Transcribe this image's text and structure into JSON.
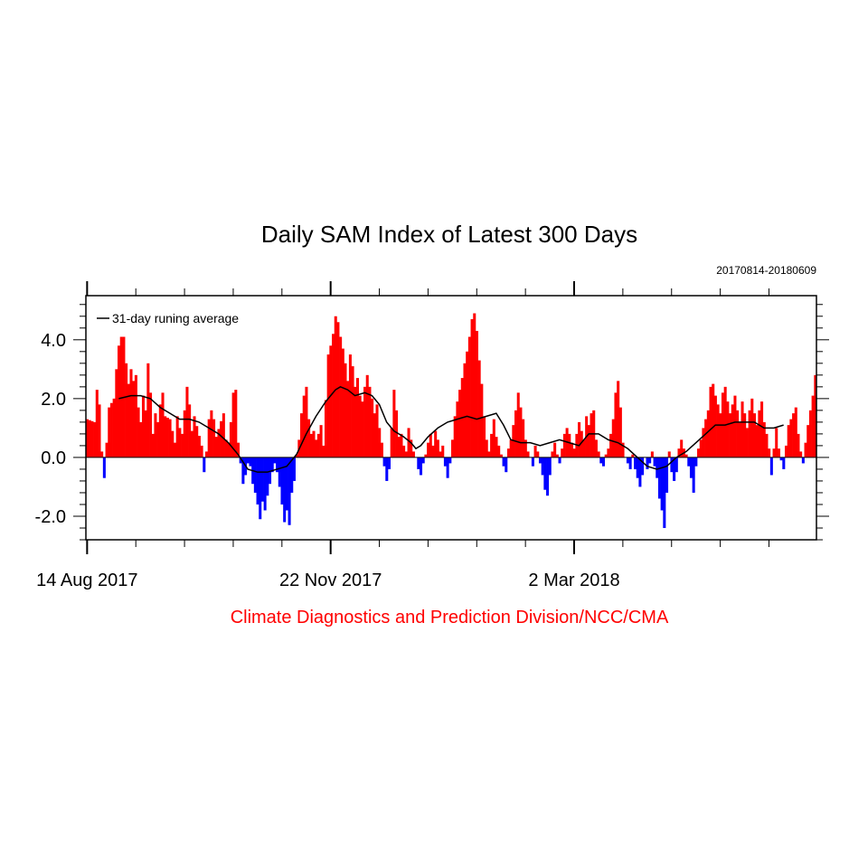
{
  "chart_data": {
    "type": "bar",
    "title": "Daily SAM Index of Latest 300 Days",
    "subtitle": "20170814-20180609",
    "credit": "Climate Diagnostics and Prediction Division/NCC/CMA",
    "legend": {
      "label": "31-day runing average",
      "placement": "top-left"
    },
    "ylim": [
      -2.8,
      5.5
    ],
    "yticks": [
      {
        "value": 4.0,
        "label": "4.0"
      },
      {
        "value": 2.0,
        "label": "2.0"
      },
      {
        "value": 0.0,
        "label": "0.0"
      },
      {
        "value": -2.0,
        "label": "-2.0"
      }
    ],
    "xlim": [
      0,
      299
    ],
    "xticks": [
      {
        "day": 0,
        "label": "14 Aug 2017"
      },
      {
        "day": 100,
        "label": "22 Nov 2017"
      },
      {
        "day": 200,
        "label": "2 Mar 2018"
      }
    ],
    "colors": {
      "positive": "#ff0000",
      "negative": "#0000ff",
      "average": "#000000",
      "credit": "#ff0000"
    },
    "anchors": [
      [
        0,
        1.3
      ],
      [
        3,
        1.2
      ],
      [
        4,
        2.3
      ],
      [
        5,
        1.8
      ],
      [
        6,
        0.2
      ],
      [
        7,
        -0.7
      ],
      [
        8,
        0.5
      ],
      [
        9,
        1.7
      ],
      [
        11,
        2.0
      ],
      [
        12,
        3.0
      ],
      [
        13,
        3.8
      ],
      [
        14,
        4.1
      ],
      [
        15,
        4.1
      ],
      [
        16,
        3.2
      ],
      [
        17,
        2.5
      ],
      [
        18,
        3.0
      ],
      [
        19,
        2.6
      ],
      [
        20,
        2.8
      ],
      [
        21,
        1.7
      ],
      [
        22,
        1.2
      ],
      [
        23,
        2.1
      ],
      [
        24,
        1.6
      ],
      [
        25,
        3.2
      ],
      [
        26,
        2.2
      ],
      [
        27,
        0.8
      ],
      [
        28,
        1.5
      ],
      [
        29,
        1.2
      ],
      [
        30,
        1.8
      ],
      [
        31,
        2.2
      ],
      [
        32,
        1.4
      ],
      [
        34,
        1.3
      ],
      [
        35,
        0.9
      ],
      [
        36,
        0.5
      ],
      [
        37,
        1.4
      ],
      [
        38,
        1.0
      ],
      [
        39,
        0.8
      ],
      [
        40,
        1.6
      ],
      [
        41,
        2.4
      ],
      [
        42,
        1.8
      ],
      [
        43,
        0.9
      ],
      [
        44,
        1.4
      ],
      [
        47,
        0.4
      ],
      [
        48,
        -0.5
      ],
      [
        49,
        0.2
      ],
      [
        50,
        1.3
      ],
      [
        51,
        1.6
      ],
      [
        52,
        1.3
      ],
      [
        53,
        0.7
      ],
      [
        56,
        1.5
      ],
      [
        57,
        0.6
      ],
      [
        58,
        0.5
      ],
      [
        59,
        1.2
      ],
      [
        60,
        2.2
      ],
      [
        61,
        2.3
      ],
      [
        62,
        0.5
      ],
      [
        63,
        -0.2
      ],
      [
        64,
        -0.9
      ],
      [
        65,
        -0.6
      ],
      [
        66,
        -0.2
      ],
      [
        67,
        -0.3
      ],
      [
        68,
        -0.9
      ],
      [
        69,
        -1.2
      ],
      [
        70,
        -1.6
      ],
      [
        71,
        -2.1
      ],
      [
        72,
        -1.5
      ],
      [
        73,
        -1.8
      ],
      [
        74,
        -1.3
      ],
      [
        75,
        -0.9
      ],
      [
        76,
        -0.5
      ],
      [
        77,
        -0.2
      ],
      [
        78,
        -0.5
      ],
      [
        79,
        -1.0
      ],
      [
        80,
        -1.6
      ],
      [
        81,
        -2.2
      ],
      [
        82,
        -1.8
      ],
      [
        83,
        -2.3
      ],
      [
        84,
        -1.2
      ],
      [
        85,
        -0.8
      ],
      [
        86,
        0.1
      ],
      [
        87,
        0.6
      ],
      [
        88,
        1.5
      ],
      [
        89,
        2.1
      ],
      [
        90,
        2.4
      ],
      [
        91,
        1.3
      ],
      [
        92,
        0.8
      ],
      [
        93,
        0.9
      ],
      [
        94,
        0.6
      ],
      [
        95,
        0.8
      ],
      [
        96,
        1.1
      ],
      [
        97,
        0.4
      ],
      [
        99,
        3.5
      ],
      [
        100,
        3.8
      ],
      [
        101,
        4.2
      ],
      [
        102,
        4.8
      ],
      [
        103,
        4.6
      ],
      [
        104,
        4.1
      ],
      [
        105,
        3.7
      ],
      [
        106,
        3.2
      ],
      [
        107,
        2.6
      ],
      [
        108,
        3.5
      ],
      [
        109,
        3.1
      ],
      [
        110,
        2.4
      ],
      [
        111,
        2.7
      ],
      [
        112,
        2.1
      ],
      [
        113,
        1.9
      ],
      [
        114,
        2.4
      ],
      [
        115,
        2.8
      ],
      [
        116,
        2.4
      ],
      [
        117,
        2.0
      ],
      [
        118,
        1.5
      ],
      [
        119,
        1.8
      ],
      [
        120,
        1.0
      ],
      [
        121,
        0.5
      ],
      [
        122,
        -0.3
      ],
      [
        123,
        -0.8
      ],
      [
        124,
        -0.4
      ],
      [
        125,
        1.0
      ],
      [
        126,
        2.3
      ],
      [
        127,
        1.6
      ],
      [
        128,
        0.7
      ],
      [
        129,
        0.8
      ],
      [
        130,
        0.4
      ],
      [
        131,
        0.2
      ],
      [
        132,
        1.0
      ],
      [
        133,
        0.6
      ],
      [
        134,
        0.2
      ],
      [
        135,
        0.0
      ],
      [
        136,
        -0.4
      ],
      [
        137,
        -0.6
      ],
      [
        138,
        -0.2
      ],
      [
        139,
        0.1
      ],
      [
        140,
        0.5
      ],
      [
        141,
        0.8
      ],
      [
        142,
        0.4
      ],
      [
        143,
        0.9
      ],
      [
        144,
        0.6
      ],
      [
        145,
        0.2
      ],
      [
        146,
        0.4
      ],
      [
        147,
        -0.3
      ],
      [
        148,
        -0.7
      ],
      [
        149,
        -0.2
      ],
      [
        150,
        0.6
      ],
      [
        151,
        1.4
      ],
      [
        152,
        1.9
      ],
      [
        153,
        2.3
      ],
      [
        154,
        2.7
      ],
      [
        155,
        3.2
      ],
      [
        156,
        3.6
      ],
      [
        157,
        4.1
      ],
      [
        158,
        4.7
      ],
      [
        159,
        4.9
      ],
      [
        160,
        4.3
      ],
      [
        161,
        3.3
      ],
      [
        162,
        2.5
      ],
      [
        163,
        1.4
      ],
      [
        164,
        0.6
      ],
      [
        165,
        0.2
      ],
      [
        166,
        0.8
      ],
      [
        167,
        1.3
      ],
      [
        168,
        0.7
      ],
      [
        169,
        0.4
      ],
      [
        170,
        0.1
      ],
      [
        171,
        -0.3
      ],
      [
        172,
        -0.5
      ],
      [
        173,
        0.3
      ],
      [
        174,
        0.6
      ],
      [
        175,
        1.1
      ],
      [
        176,
        1.6
      ],
      [
        177,
        2.2
      ],
      [
        178,
        1.7
      ],
      [
        179,
        1.3
      ],
      [
        180,
        0.6
      ],
      [
        181,
        0.2
      ],
      [
        182,
        0.0
      ],
      [
        183,
        -0.3
      ],
      [
        184,
        0.4
      ],
      [
        185,
        0.2
      ],
      [
        186,
        -0.2
      ],
      [
        187,
        -0.6
      ],
      [
        188,
        -1.1
      ],
      [
        189,
        -1.3
      ],
      [
        190,
        -0.6
      ],
      [
        191,
        0.2
      ],
      [
        192,
        0.5
      ],
      [
        193,
        0.1
      ],
      [
        194,
        -0.2
      ],
      [
        195,
        0.3
      ],
      [
        196,
        0.8
      ],
      [
        197,
        1.0
      ],
      [
        198,
        0.8
      ],
      [
        199,
        0.5
      ],
      [
        200,
        0.3
      ],
      [
        201,
        0.8
      ],
      [
        202,
        1.2
      ],
      [
        203,
        0.9
      ],
      [
        204,
        0.6
      ],
      [
        205,
        1.4
      ],
      [
        206,
        1.1
      ],
      [
        207,
        1.5
      ],
      [
        208,
        1.6
      ],
      [
        209,
        0.6
      ],
      [
        210,
        0.2
      ],
      [
        211,
        -0.2
      ],
      [
        212,
        -0.3
      ],
      [
        213,
        0.1
      ],
      [
        214,
        0.3
      ],
      [
        215,
        0.8
      ],
      [
        216,
        1.3
      ],
      [
        217,
        2.2
      ],
      [
        218,
        2.6
      ],
      [
        219,
        1.7
      ],
      [
        220,
        0.5
      ],
      [
        221,
        0.0
      ],
      [
        222,
        -0.2
      ],
      [
        223,
        -0.4
      ],
      [
        224,
        0.1
      ],
      [
        225,
        -0.4
      ],
      [
        226,
        -0.7
      ],
      [
        227,
        -1.0
      ],
      [
        228,
        -0.6
      ],
      [
        229,
        0.0
      ],
      [
        230,
        -0.4
      ],
      [
        231,
        -0.2
      ],
      [
        232,
        0.2
      ],
      [
        233,
        -0.3
      ],
      [
        234,
        -0.7
      ],
      [
        235,
        -1.4
      ],
      [
        236,
        -1.8
      ],
      [
        237,
        -2.4
      ],
      [
        238,
        -1.2
      ],
      [
        239,
        0.2
      ],
      [
        240,
        -0.5
      ],
      [
        241,
        -0.8
      ],
      [
        242,
        -0.5
      ],
      [
        243,
        0.3
      ],
      [
        244,
        0.6
      ],
      [
        245,
        0.3
      ],
      [
        246,
        0.1
      ],
      [
        247,
        -0.3
      ],
      [
        248,
        -0.7
      ],
      [
        249,
        -1.2
      ],
      [
        250,
        -0.3
      ],
      [
        251,
        0.3
      ],
      [
        252,
        0.6
      ],
      [
        253,
        1.0
      ],
      [
        254,
        1.3
      ],
      [
        255,
        1.6
      ],
      [
        256,
        2.4
      ],
      [
        257,
        2.5
      ],
      [
        258,
        2.1
      ],
      [
        259,
        1.8
      ],
      [
        260,
        1.5
      ],
      [
        261,
        2.2
      ],
      [
        262,
        2.4
      ],
      [
        263,
        1.9
      ],
      [
        264,
        1.5
      ],
      [
        265,
        1.8
      ],
      [
        266,
        2.1
      ],
      [
        267,
        1.6
      ],
      [
        268,
        1.2
      ],
      [
        269,
        1.9
      ],
      [
        270,
        1.5
      ],
      [
        271,
        1.0
      ],
      [
        272,
        1.6
      ],
      [
        273,
        2.0
      ],
      [
        274,
        1.5
      ],
      [
        275,
        1.1
      ],
      [
        276,
        1.6
      ],
      [
        277,
        1.9
      ],
      [
        278,
        1.2
      ],
      [
        279,
        0.8
      ],
      [
        280,
        0.3
      ],
      [
        281,
        -0.6
      ],
      [
        282,
        0.3
      ],
      [
        283,
        1.0
      ],
      [
        284,
        0.3
      ],
      [
        285,
        -0.1
      ],
      [
        286,
        -0.4
      ],
      [
        287,
        0.4
      ],
      [
        288,
        1.1
      ],
      [
        289,
        1.3
      ],
      [
        290,
        1.5
      ],
      [
        291,
        1.7
      ],
      [
        292,
        0.8
      ],
      [
        293,
        0.2
      ],
      [
        294,
        -0.2
      ],
      [
        295,
        0.5
      ],
      [
        296,
        1.1
      ],
      [
        297,
        1.6
      ],
      [
        298,
        2.1
      ],
      [
        299,
        2.8
      ]
    ],
    "running_average": [
      [
        13,
        2.0
      ],
      [
        18,
        2.1
      ],
      [
        22,
        2.1
      ],
      [
        26,
        2.0
      ],
      [
        30,
        1.7
      ],
      [
        34,
        1.5
      ],
      [
        38,
        1.3
      ],
      [
        42,
        1.3
      ],
      [
        46,
        1.2
      ],
      [
        50,
        1.0
      ],
      [
        54,
        0.8
      ],
      [
        58,
        0.5
      ],
      [
        62,
        0.1
      ],
      [
        66,
        -0.4
      ],
      [
        70,
        -0.5
      ],
      [
        74,
        -0.5
      ],
      [
        78,
        -0.4
      ],
      [
        82,
        -0.3
      ],
      [
        86,
        0.1
      ],
      [
        90,
        0.8
      ],
      [
        94,
        1.4
      ],
      [
        98,
        1.9
      ],
      [
        102,
        2.3
      ],
      [
        104,
        2.4
      ],
      [
        107,
        2.3
      ],
      [
        110,
        2.1
      ],
      [
        114,
        2.2
      ],
      [
        117,
        2.1
      ],
      [
        120,
        1.8
      ],
      [
        123,
        1.2
      ],
      [
        126,
        0.9
      ],
      [
        130,
        0.7
      ],
      [
        133,
        0.5
      ],
      [
        135,
        0.3
      ],
      [
        137,
        0.4
      ],
      [
        140,
        0.7
      ],
      [
        144,
        1.0
      ],
      [
        148,
        1.2
      ],
      [
        152,
        1.3
      ],
      [
        156,
        1.4
      ],
      [
        160,
        1.3
      ],
      [
        164,
        1.4
      ],
      [
        168,
        1.5
      ],
      [
        171,
        1.1
      ],
      [
        174,
        0.6
      ],
      [
        178,
        0.5
      ],
      [
        182,
        0.5
      ],
      [
        186,
        0.4
      ],
      [
        190,
        0.5
      ],
      [
        194,
        0.6
      ],
      [
        198,
        0.5
      ],
      [
        202,
        0.4
      ],
      [
        206,
        0.8
      ],
      [
        210,
        0.8
      ],
      [
        214,
        0.6
      ],
      [
        218,
        0.5
      ],
      [
        222,
        0.3
      ],
      [
        226,
        0.0
      ],
      [
        230,
        -0.3
      ],
      [
        234,
        -0.4
      ],
      [
        238,
        -0.3
      ],
      [
        242,
        0.0
      ],
      [
        246,
        0.2
      ],
      [
        250,
        0.5
      ],
      [
        254,
        0.8
      ],
      [
        258,
        1.1
      ],
      [
        262,
        1.1
      ],
      [
        266,
        1.2
      ],
      [
        270,
        1.2
      ],
      [
        274,
        1.2
      ],
      [
        278,
        1.0
      ],
      [
        282,
        1.0
      ],
      [
        286,
        1.1
      ]
    ]
  }
}
